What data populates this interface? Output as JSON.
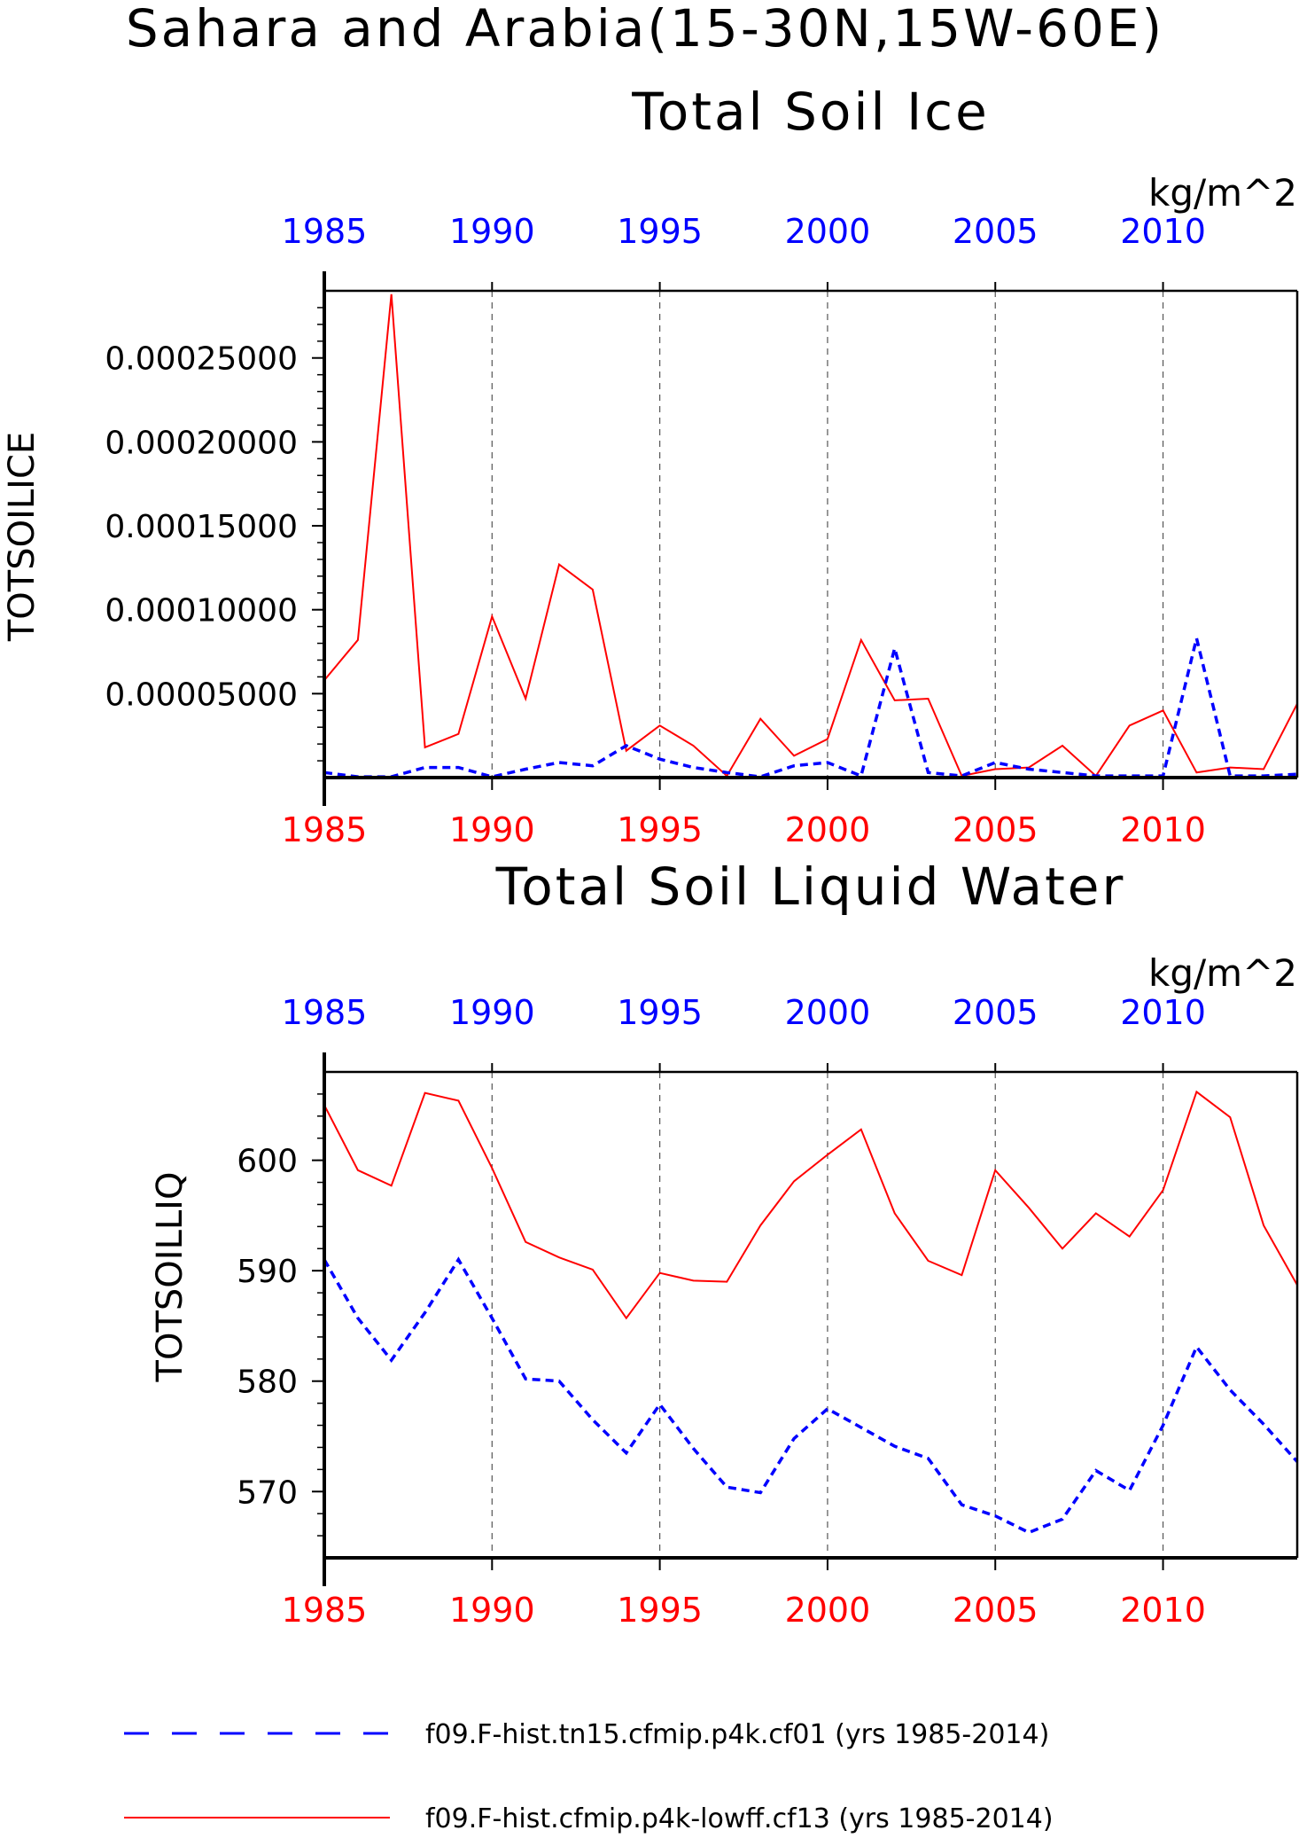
{
  "figure": {
    "title": "Sahara and Arabia(15-30N,15W-60E)",
    "legend": [
      {
        "label": "f09.F-hist.tn15.cfmip.p4k.cf01 (yrs 1985-2014)",
        "color": "#0000ff",
        "style": "dashed"
      },
      {
        "label": "f09.F-hist.cfmip.p4k-lowff.cf13 (yrs 1985-2014)",
        "color": "#ff0000",
        "style": "solid"
      }
    ]
  },
  "chart_data": [
    {
      "type": "line",
      "title": "Total Soil Ice",
      "units": "kg/m^2",
      "ylabel": "TOTSOILICE",
      "xlim": [
        1985,
        2014
      ],
      "ylim": [
        0,
        0.00029
      ],
      "yticks": [
        5e-05,
        0.0001,
        0.00015,
        0.0002,
        0.00025
      ],
      "ytick_labels": [
        "0.00005000",
        "0.00010000",
        "0.00015000",
        "0.00020000",
        "0.00025000"
      ],
      "xticks": [
        1985,
        1990,
        1995,
        2000,
        2005,
        2010
      ],
      "xtick_labels": [
        "1985",
        "1990",
        "1995",
        "2000",
        "2005",
        "2010"
      ],
      "grid": "vertical dashed at x ticks",
      "x": [
        1985,
        1986,
        1987,
        1988,
        1989,
        1990,
        1991,
        1992,
        1993,
        1994,
        1995,
        1996,
        1997,
        1998,
        1999,
        2000,
        2001,
        2002,
        2003,
        2004,
        2005,
        2006,
        2007,
        2008,
        2009,
        2010,
        2011,
        2012,
        2013,
        2014
      ],
      "series": [
        {
          "name": "f09.F-hist.cfmip.p4k-lowff.cf13",
          "color": "#ff0000",
          "style": "solid",
          "values": [
            5.8e-05,
            8.2e-05,
            0.000288,
            1.8e-05,
            2.6e-05,
            9.6e-05,
            4.7e-05,
            0.000127,
            0.000112,
            1.6e-05,
            3.1e-05,
            1.9e-05,
            1e-06,
            3.5e-05,
            1.3e-05,
            2.3e-05,
            8.2e-05,
            4.6e-05,
            4.7e-05,
            1e-06,
            5e-06,
            6e-06,
            1.9e-05,
            1e-06,
            3.1e-05,
            4e-05,
            3e-06,
            6e-06,
            5e-06,
            4.4e-05
          ]
        },
        {
          "name": "f09.F-hist.tn15.cfmip.p4k.cf01",
          "color": "#0000ff",
          "style": "dashed",
          "values": [
            3e-06,
            5e-07,
            5e-07,
            6e-06,
            6e-06,
            5e-07,
            5e-06,
            9e-06,
            7e-06,
            1.9e-05,
            1.1e-05,
            6e-06,
            3e-06,
            5e-07,
            7e-06,
            9e-06,
            1e-06,
            7.7e-05,
            3e-06,
            1e-06,
            9e-06,
            5e-06,
            3e-06,
            1e-06,
            1e-06,
            1e-06,
            8.3e-05,
            1e-06,
            1e-06,
            2e-06
          ]
        }
      ]
    },
    {
      "type": "line",
      "title": "Total Soil Liquid Water",
      "units": "kg/m^2",
      "ylabel": "TOTSOILLIQ",
      "xlim": [
        1985,
        2014
      ],
      "ylim": [
        564,
        608
      ],
      "yticks": [
        570,
        580,
        590,
        600
      ],
      "ytick_labels": [
        "570",
        "580",
        "590",
        "600"
      ],
      "xticks": [
        1985,
        1990,
        1995,
        2000,
        2005,
        2010
      ],
      "xtick_labels": [
        "1985",
        "1990",
        "1995",
        "2000",
        "2005",
        "2010"
      ],
      "grid": "vertical dashed at x ticks",
      "x": [
        1985,
        1986,
        1987,
        1988,
        1989,
        1990,
        1991,
        1992,
        1993,
        1994,
        1995,
        1996,
        1997,
        1998,
        1999,
        2000,
        2001,
        2002,
        2003,
        2004,
        2005,
        2006,
        2007,
        2008,
        2009,
        2010,
        2011,
        2012,
        2013,
        2014
      ],
      "series": [
        {
          "name": "f09.F-hist.cfmip.p4k-lowff.cf13",
          "color": "#ff0000",
          "style": "solid",
          "values": [
            605.0,
            599.1,
            597.7,
            606.1,
            605.4,
            599.3,
            592.6,
            591.2,
            590.1,
            585.7,
            589.8,
            589.1,
            589.0,
            594.1,
            598.1,
            600.5,
            602.8,
            595.2,
            590.9,
            589.6,
            599.1,
            595.7,
            592.0,
            595.2,
            593.1,
            597.3,
            606.2,
            603.9,
            594.1,
            588.7
          ]
        },
        {
          "name": "f09.F-hist.tn15.cfmip.p4k.cf01",
          "color": "#0000ff",
          "style": "dashed",
          "values": [
            591.0,
            585.7,
            581.9,
            586.2,
            591.0,
            585.7,
            580.2,
            580.0,
            576.5,
            573.5,
            577.9,
            573.9,
            570.4,
            569.9,
            574.8,
            577.5,
            575.8,
            574.1,
            573.0,
            568.8,
            567.8,
            566.3,
            567.5,
            571.9,
            570.1,
            576.0,
            583.1,
            579.2,
            576.1,
            572.7
          ]
        }
      ]
    }
  ]
}
